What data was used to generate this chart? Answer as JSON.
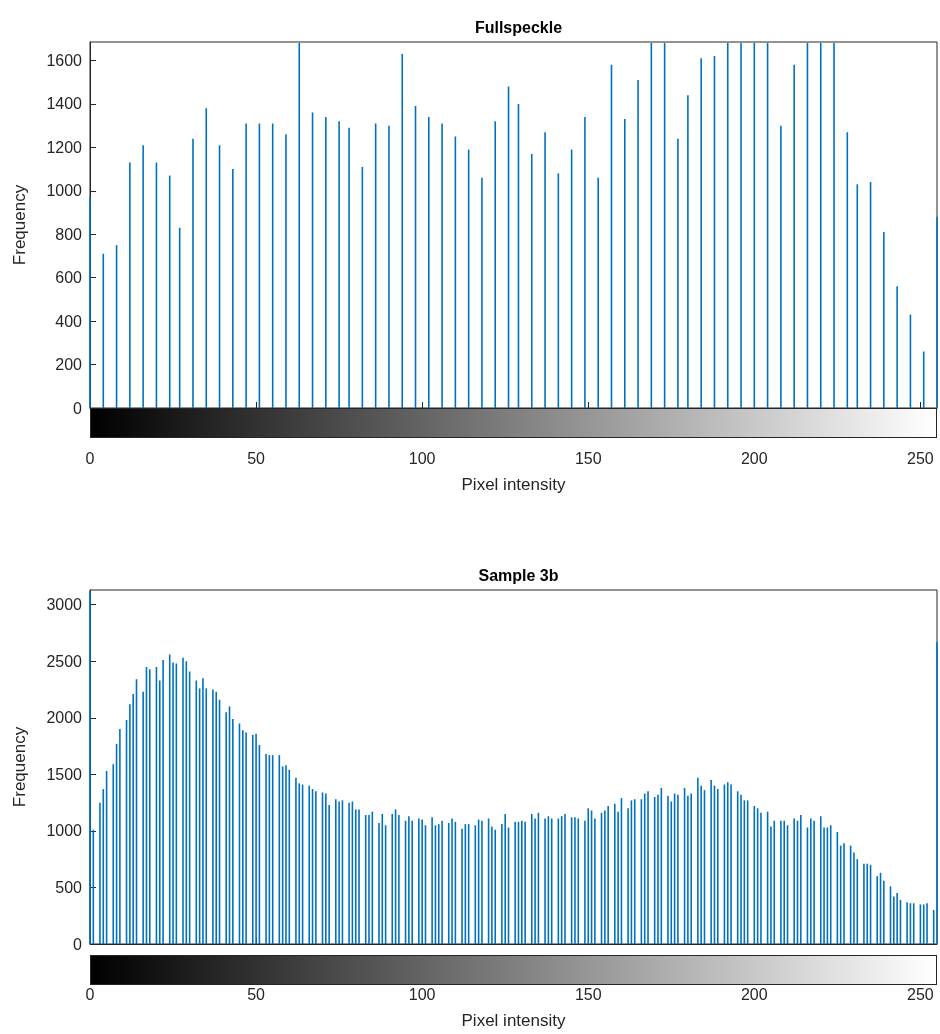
{
  "chart_data": [
    {
      "type": "bar",
      "title": "Fullspeckle",
      "xlabel": "Pixel intensity",
      "ylabel": "Frequency",
      "color": "#0072bd",
      "x": [
        0,
        4,
        8,
        12,
        16,
        20,
        24,
        27,
        31,
        35,
        39,
        43,
        47,
        51,
        55,
        59,
        63,
        67,
        71,
        75,
        78,
        82,
        86,
        90,
        94,
        98,
        102,
        106,
        110,
        114,
        118,
        122,
        126,
        129,
        133,
        137,
        141,
        145,
        149,
        153,
        157,
        161,
        165,
        169,
        173,
        177,
        180,
        184,
        188,
        192,
        196,
        200,
        204,
        208,
        212,
        216,
        220,
        224,
        228,
        231,
        235,
        239,
        243,
        247,
        251,
        255
      ],
      "values": [
        970,
        710,
        750,
        1130,
        1210,
        1130,
        1070,
        830,
        1240,
        1380,
        1210,
        1100,
        1310,
        1310,
        1310,
        1260,
        1680,
        1360,
        1340,
        1320,
        1290,
        1110,
        1310,
        1300,
        1630,
        1390,
        1340,
        1310,
        1250,
        1190,
        1060,
        1320,
        1480,
        1400,
        1170,
        1270,
        1080,
        1190,
        1340,
        1060,
        1580,
        1330,
        1510,
        1680,
        1680,
        1240,
        1440,
        1610,
        1620,
        1680,
        1680,
        1680,
        1680,
        1300,
        1580,
        1680,
        1680,
        1680,
        1270,
        1030,
        1040,
        810,
        560,
        430,
        260,
        880
      ],
      "xlim": [
        0,
        255
      ],
      "xticks": [
        0,
        50,
        100,
        150,
        200,
        250
      ],
      "ylim": [
        0,
        1685
      ],
      "yticks": [
        0,
        200,
        400,
        600,
        800,
        1000,
        1200,
        1400,
        1600
      ]
    },
    {
      "type": "bar",
      "title": "Sample 3b",
      "xlabel": "Pixel intensity",
      "ylabel": "Frequency",
      "color": "#0072bd",
      "x": [
        0,
        1,
        3,
        4,
        5,
        7,
        8,
        9,
        11,
        12,
        13,
        14,
        16,
        17,
        18,
        20,
        21,
        22,
        24,
        25,
        26,
        28,
        29,
        30,
        32,
        33,
        34,
        35,
        37,
        38,
        39,
        41,
        42,
        43,
        45,
        46,
        47,
        49,
        50,
        51,
        53,
        54,
        55,
        57,
        58,
        59,
        60,
        62,
        63,
        64,
        66,
        67,
        68,
        70,
        71,
        72,
        74,
        75,
        76,
        78,
        79,
        80,
        81,
        83,
        84,
        85,
        87,
        88,
        89,
        91,
        92,
        93,
        95,
        96,
        97,
        99,
        100,
        101,
        103,
        104,
        105,
        106,
        108,
        109,
        110,
        112,
        113,
        114,
        116,
        117,
        118,
        120,
        121,
        122,
        124,
        125,
        126,
        128,
        129,
        130,
        131,
        133,
        134,
        135,
        137,
        138,
        139,
        141,
        142,
        143,
        145,
        146,
        147,
        149,
        150,
        151,
        152,
        154,
        155,
        156,
        158,
        159,
        160,
        162,
        163,
        164,
        166,
        167,
        168,
        170,
        171,
        172,
        174,
        175,
        176,
        177,
        179,
        180,
        181,
        183,
        184,
        185,
        187,
        188,
        189,
        191,
        192,
        193,
        195,
        196,
        197,
        198,
        200,
        201,
        202,
        204,
        205,
        206,
        208,
        209,
        210,
        212,
        213,
        214,
        216,
        217,
        218,
        220,
        221,
        222,
        223,
        225,
        226,
        227,
        229,
        230,
        231,
        233,
        234,
        235,
        237,
        238,
        239,
        241,
        242,
        243,
        244,
        246,
        247,
        248,
        250,
        251,
        252,
        254,
        255
      ],
      "values": [
        3120,
        1010,
        1250,
        1370,
        1530,
        1590,
        1770,
        1900,
        1980,
        2120,
        2210,
        2340,
        2230,
        2450,
        2430,
        2450,
        2330,
        2510,
        2560,
        2490,
        2480,
        2530,
        2500,
        2410,
        2330,
        2260,
        2350,
        2260,
        2250,
        2230,
        2160,
        2050,
        2100,
        1990,
        1950,
        1890,
        1870,
        1850,
        1860,
        1760,
        1680,
        1670,
        1670,
        1670,
        1570,
        1580,
        1540,
        1470,
        1420,
        1410,
        1400,
        1370,
        1350,
        1340,
        1330,
        1230,
        1280,
        1260,
        1270,
        1250,
        1260,
        1190,
        1190,
        1140,
        1140,
        1170,
        1070,
        1150,
        1050,
        1150,
        1190,
        1140,
        1090,
        1130,
        1090,
        1110,
        1100,
        1050,
        1120,
        1050,
        1060,
        1090,
        1070,
        1110,
        1080,
        1020,
        1060,
        1060,
        1050,
        1100,
        1090,
        1110,
        1040,
        1010,
        1060,
        1150,
        1030,
        1080,
        1080,
        1090,
        1080,
        1150,
        1110,
        1160,
        1110,
        1130,
        1110,
        1110,
        1130,
        1150,
        1120,
        1120,
        1110,
        1090,
        1200,
        1180,
        1110,
        1160,
        1180,
        1220,
        1240,
        1170,
        1290,
        1200,
        1270,
        1280,
        1280,
        1330,
        1350,
        1300,
        1320,
        1380,
        1310,
        1260,
        1330,
        1320,
        1380,
        1310,
        1330,
        1470,
        1400,
        1360,
        1450,
        1400,
        1370,
        1410,
        1430,
        1410,
        1350,
        1320,
        1270,
        1270,
        1220,
        1200,
        1160,
        1170,
        1040,
        1090,
        1090,
        1090,
        1050,
        1110,
        1090,
        1140,
        1030,
        1110,
        1090,
        1130,
        1030,
        1030,
        1050,
        990,
        870,
        890,
        870,
        810,
        750,
        710,
        710,
        700,
        600,
        630,
        560,
        510,
        420,
        450,
        390,
        370,
        360,
        360,
        350,
        350,
        360,
        300,
        2670
      ],
      "xlim": [
        0,
        255
      ],
      "xticks": [
        0,
        50,
        100,
        150,
        200,
        250
      ],
      "ylim": [
        0,
        3130
      ],
      "yticks": [
        0,
        500,
        1000,
        1500,
        2000,
        2500,
        3000
      ]
    }
  ]
}
